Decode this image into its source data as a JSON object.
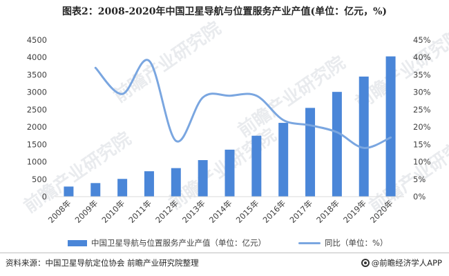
{
  "title": "图表2：2008-2020年中国卫星导航与位置服务产业产值(单位：亿元，%)",
  "watermark": "前瞻产业研究院",
  "source": "资料来源：中国卫星导航定位协会 前瞻产业研究院整理",
  "brand": "@前瞻经济学人APP",
  "chart_data": {
    "type": "bar",
    "categories": [
      "2008年",
      "2009年",
      "2010年",
      "2011年",
      "2012年",
      "2013年",
      "2014年",
      "2015年",
      "2016年",
      "2017年",
      "2018年",
      "2019年",
      "2020年"
    ],
    "series": [
      {
        "name": "中国卫星导航与位置服务产业产值（单位：亿元）",
        "type": "bar",
        "axis": "left",
        "color": "#4a86d8",
        "values": [
          290,
          390,
          510,
          730,
          820,
          1050,
          1350,
          1750,
          2120,
          2550,
          3010,
          3450,
          4030
        ]
      },
      {
        "name": "同比（单位：%）",
        "type": "line",
        "axis": "right",
        "color": "#7aa6e0",
        "values": [
          null,
          37,
          29.5,
          39,
          16,
          28.5,
          29,
          29,
          22,
          20.5,
          18.5,
          14,
          17
        ]
      }
    ],
    "left_axis": {
      "ylim": [
        0,
        4500
      ],
      "ticks": [
        "0",
        "500",
        "1000",
        "1500",
        "2000",
        "2500",
        "3000",
        "3500",
        "4000",
        "4500"
      ]
    },
    "right_axis": {
      "ylim": [
        0,
        45
      ],
      "ticks": [
        "0%",
        "5%",
        "10%",
        "15%",
        "20%",
        "25%",
        "30%",
        "35%",
        "40%",
        "45%"
      ]
    },
    "grid": false,
    "legend_position": "bottom"
  }
}
